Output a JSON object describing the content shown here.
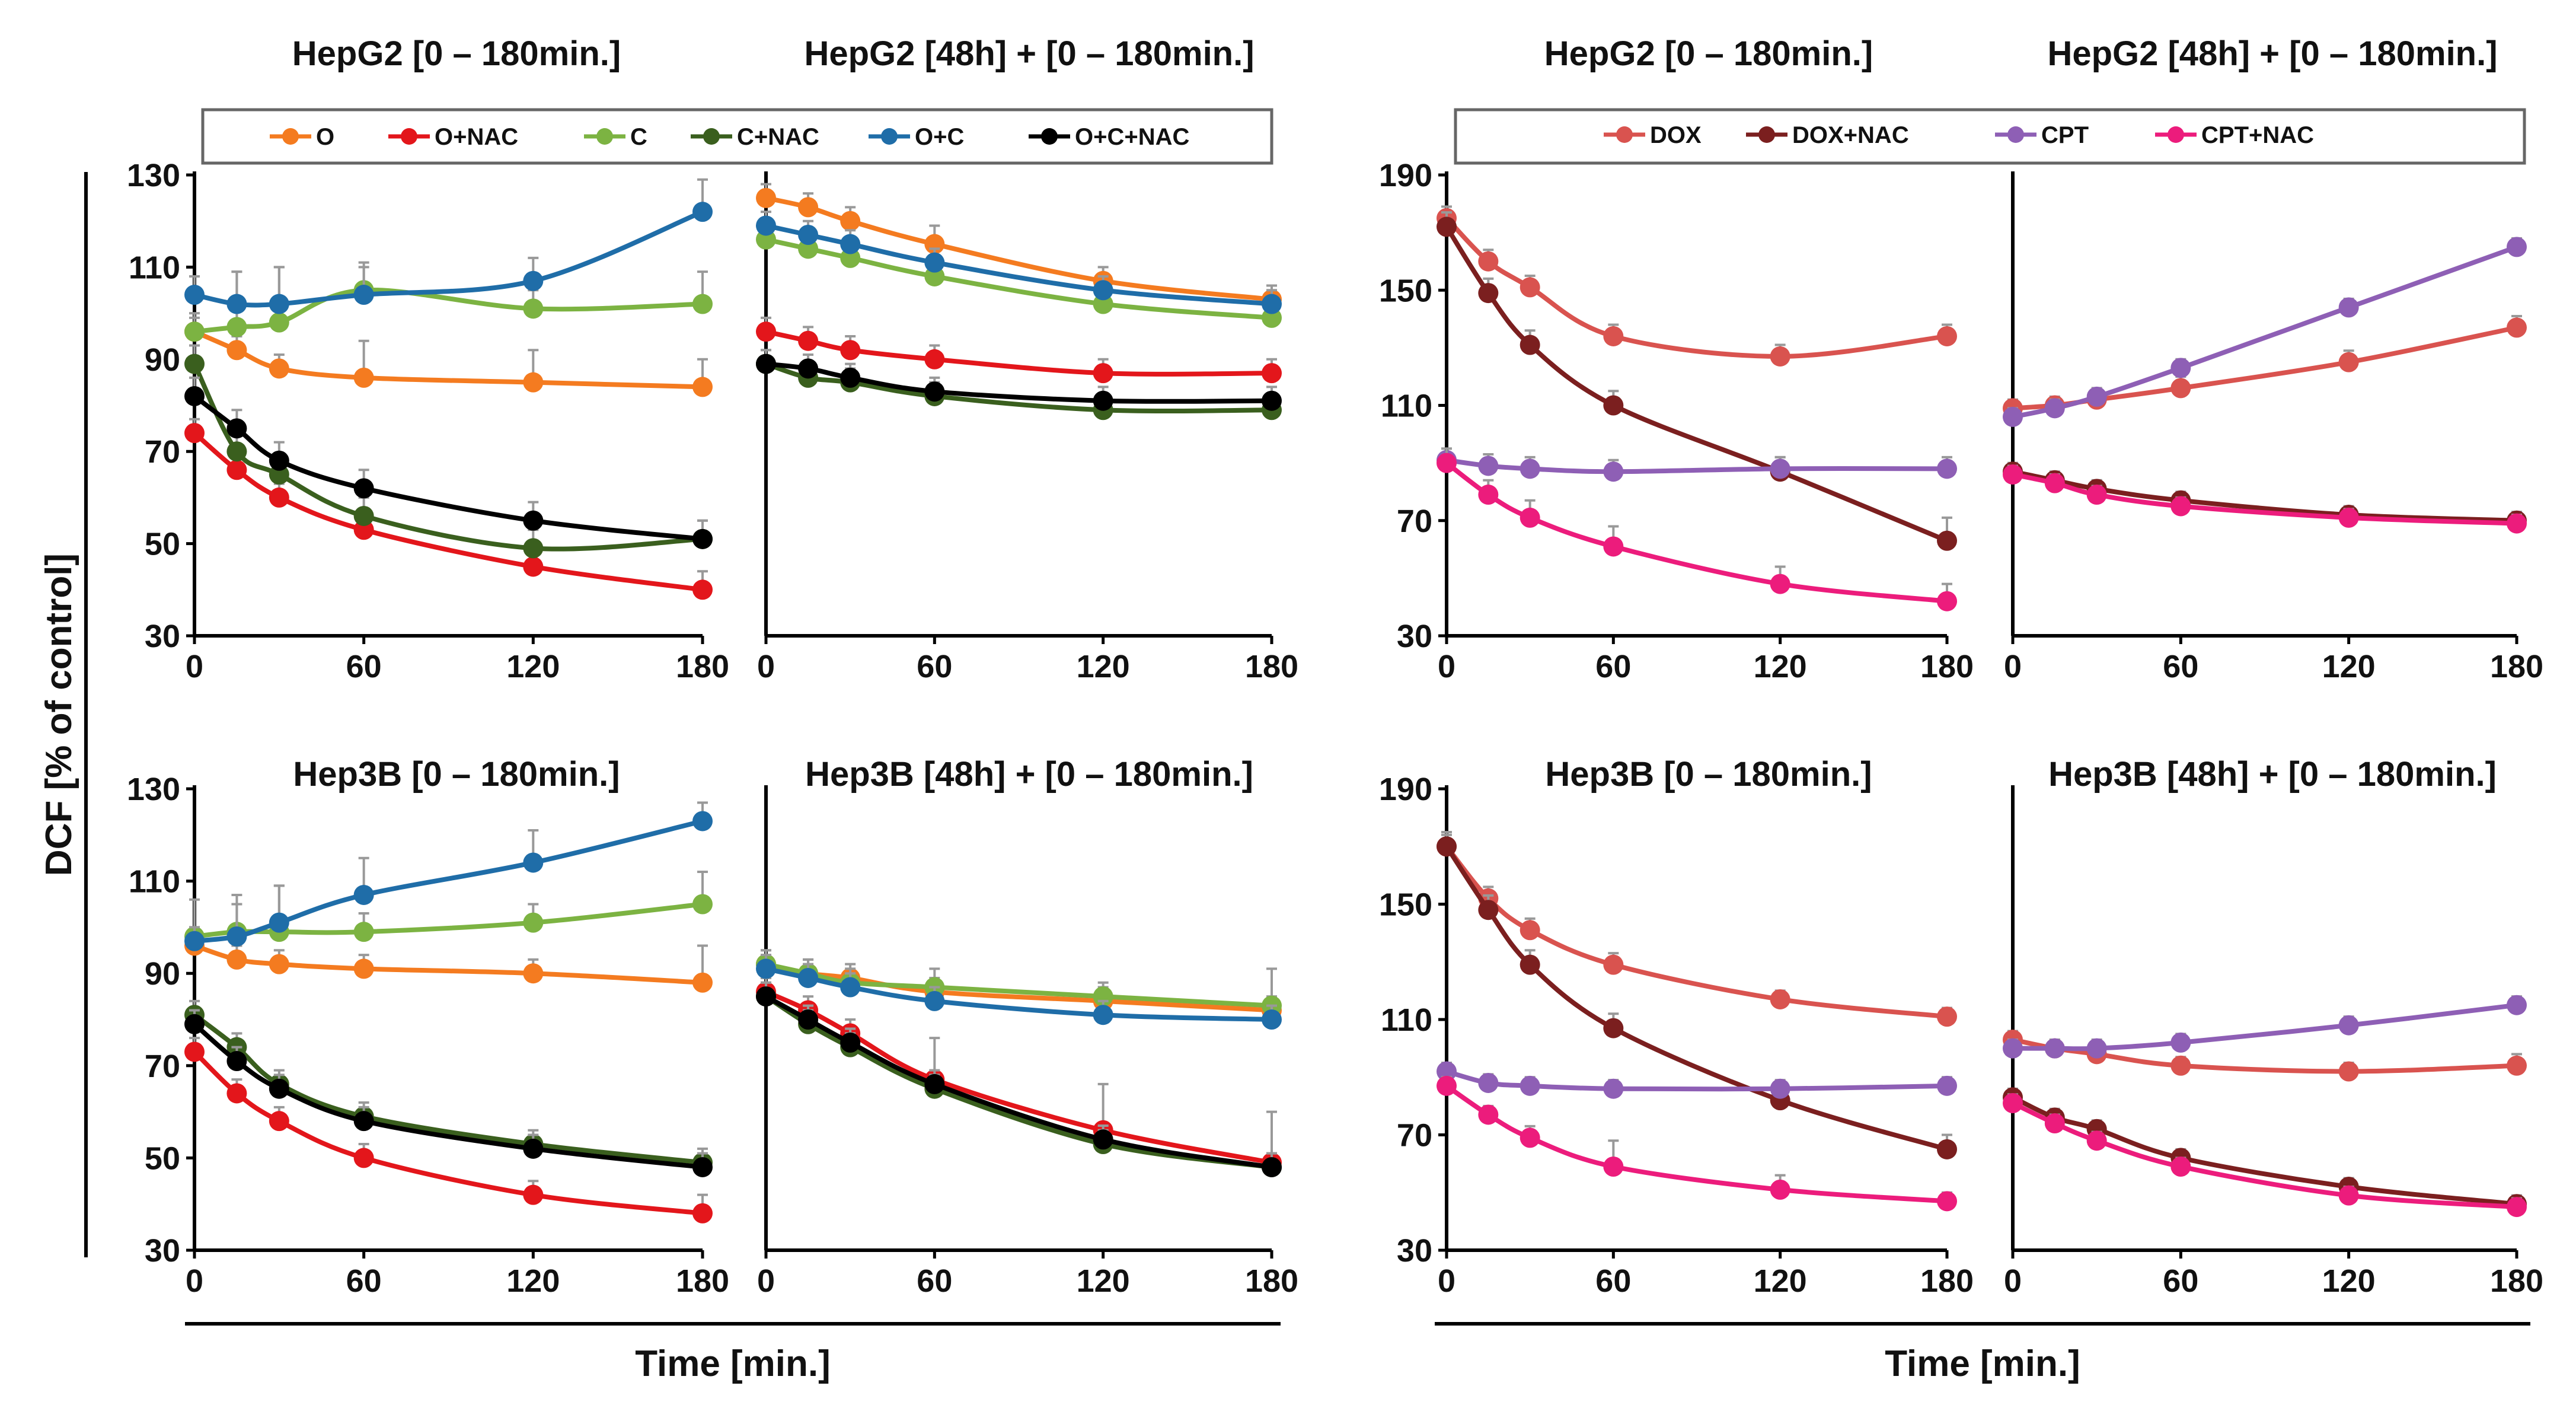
{
  "y_axis_title": "DCF [% of control]",
  "x_axis_title_left": "Time [min.]",
  "x_axis_title_right": "Time [min.]",
  "legend_left": [
    {
      "key": "O",
      "label": "O",
      "color": "#F47B20"
    },
    {
      "key": "ONAC",
      "label": "O+NAC",
      "color": "#E3161B"
    },
    {
      "key": "C",
      "label": "C",
      "color": "#7CB342"
    },
    {
      "key": "CNAC",
      "label": "C+NAC",
      "color": "#3A5F1E"
    },
    {
      "key": "OC",
      "label": "O+C",
      "color": "#1F6DA8"
    },
    {
      "key": "OCNAC",
      "label": "O+C+NAC",
      "color": "#000000"
    }
  ],
  "legend_right": [
    {
      "key": "DOX",
      "label": "DOX",
      "color": "#D9534F"
    },
    {
      "key": "DOXNAC",
      "label": "DOX+NAC",
      "color": "#7B1F1F"
    },
    {
      "key": "CPT",
      "label": "CPT",
      "color": "#8E5FB5"
    },
    {
      "key": "CPTNAC",
      "label": "CPT+NAC",
      "color": "#EC1C7C"
    }
  ],
  "chart_data": [
    {
      "type": "line",
      "title": "HepG2 [0 – 180min.]",
      "x": [
        0,
        15,
        30,
        60,
        120,
        180
      ],
      "xticks": [
        "0",
        "60",
        "120",
        "180"
      ],
      "xtick_values": [
        0,
        60,
        120,
        180
      ],
      "ylim": [
        30,
        130
      ],
      "yticks": [
        "30",
        "50",
        "70",
        "90",
        "110",
        "130"
      ],
      "ytick_values": [
        30,
        50,
        70,
        90,
        110,
        130
      ],
      "xlabel": "Time [min.]",
      "ylabel": "DCF [% of control]",
      "series": [
        {
          "name": "O",
          "values": [
            96,
            92,
            88,
            86,
            85,
            84
          ],
          "errors": [
            3,
            3,
            3,
            8,
            7,
            6
          ]
        },
        {
          "name": "O+NAC",
          "values": [
            74,
            66,
            60,
            53,
            45,
            40
          ],
          "errors": [
            3,
            3,
            3,
            3,
            3,
            4
          ]
        },
        {
          "name": "C",
          "values": [
            96,
            97,
            98,
            105,
            101,
            102
          ],
          "errors": [
            4,
            12,
            12,
            6,
            4,
            7
          ]
        },
        {
          "name": "C+NAC",
          "values": [
            89,
            70,
            65,
            56,
            49,
            51
          ],
          "errors": [
            4,
            4,
            4,
            4,
            4,
            4
          ]
        },
        {
          "name": "O+C",
          "values": [
            104,
            102,
            102,
            104,
            107,
            122
          ],
          "errors": [
            4,
            7,
            8,
            6,
            5,
            7
          ]
        },
        {
          "name": "O+C+NAC",
          "values": [
            82,
            75,
            68,
            62,
            55,
            51
          ],
          "errors": [
            4,
            4,
            4,
            4,
            4,
            4
          ]
        }
      ]
    },
    {
      "type": "line",
      "title": "HepG2 [48h] + [0 – 180min.]",
      "x": [
        0,
        15,
        30,
        60,
        120,
        180
      ],
      "xticks": [
        "0",
        "60",
        "120",
        "180"
      ],
      "xtick_values": [
        0,
        60,
        120,
        180
      ],
      "ylim": [
        30,
        130
      ],
      "yticks": [],
      "ytick_values": [],
      "xlabel": "Time [min.]",
      "series": [
        {
          "name": "O",
          "values": [
            125,
            123,
            120,
            115,
            107,
            103
          ],
          "errors": [
            3,
            3,
            3,
            4,
            3,
            3
          ]
        },
        {
          "name": "O+NAC",
          "values": [
            96,
            94,
            92,
            90,
            87,
            87
          ],
          "errors": [
            3,
            3,
            3,
            3,
            3,
            3
          ]
        },
        {
          "name": "C",
          "values": [
            116,
            114,
            112,
            108,
            102,
            99
          ],
          "errors": [
            3,
            3,
            3,
            3,
            3,
            3
          ]
        },
        {
          "name": "C+NAC",
          "values": [
            89,
            86,
            85,
            82,
            79,
            79
          ],
          "errors": [
            3,
            3,
            3,
            3,
            3,
            3
          ]
        },
        {
          "name": "O+C",
          "values": [
            119,
            117,
            115,
            111,
            105,
            102
          ],
          "errors": [
            3,
            3,
            3,
            3,
            3,
            3
          ]
        },
        {
          "name": "O+C+NAC",
          "values": [
            89,
            88,
            86,
            83,
            81,
            81
          ],
          "errors": [
            3,
            3,
            3,
            3,
            3,
            3
          ]
        }
      ]
    },
    {
      "type": "line",
      "title": "HepG2 [0 – 180min.]",
      "x": [
        0,
        15,
        30,
        60,
        120,
        180
      ],
      "xticks": [
        "0",
        "60",
        "120",
        "180"
      ],
      "xtick_values": [
        0,
        60,
        120,
        180
      ],
      "ylim": [
        30,
        190
      ],
      "yticks": [
        "30",
        "70",
        "110",
        "150",
        "190"
      ],
      "ytick_values": [
        30,
        70,
        110,
        150,
        190
      ],
      "xlabel": "Time [min.]",
      "series": [
        {
          "name": "DOX",
          "values": [
            175,
            160,
            151,
            134,
            127,
            134
          ],
          "errors": [
            4,
            4,
            4,
            4,
            4,
            4
          ]
        },
        {
          "name": "DOX+NAC",
          "values": [
            172,
            149,
            131,
            110,
            87,
            63
          ],
          "errors": [
            5,
            5,
            5,
            5,
            5,
            8
          ]
        },
        {
          "name": "CPT",
          "values": [
            91,
            89,
            88,
            87,
            88,
            88
          ],
          "errors": [
            4,
            4,
            4,
            4,
            4,
            4
          ]
        },
        {
          "name": "CPT+NAC",
          "values": [
            90,
            79,
            71,
            61,
            48,
            42
          ],
          "errors": [
            5,
            5,
            6,
            7,
            6,
            6
          ]
        }
      ]
    },
    {
      "type": "line",
      "title": "HepG2 [48h] + [0 – 180min.]",
      "x": [
        0,
        15,
        30,
        60,
        120,
        180
      ],
      "xticks": [
        "0",
        "60",
        "120",
        "180"
      ],
      "xtick_values": [
        0,
        60,
        120,
        180
      ],
      "ylim": [
        30,
        190
      ],
      "yticks": [],
      "ytick_values": [],
      "xlabel": "Time [min.]",
      "series": [
        {
          "name": "DOX",
          "values": [
            109,
            110,
            112,
            116,
            125,
            137
          ],
          "errors": [
            3,
            3,
            3,
            4,
            4,
            4
          ]
        },
        {
          "name": "DOX+NAC",
          "values": [
            87,
            84,
            81,
            77,
            72,
            70
          ],
          "errors": [
            3,
            3,
            3,
            3,
            3,
            3
          ]
        },
        {
          "name": "CPT",
          "values": [
            106,
            109,
            113,
            123,
            144,
            165
          ],
          "errors": [
            3,
            3,
            3,
            3,
            3,
            3
          ]
        },
        {
          "name": "CPT+NAC",
          "values": [
            86,
            83,
            79,
            75,
            71,
            69
          ],
          "errors": [
            3,
            3,
            3,
            3,
            3,
            3
          ]
        }
      ]
    },
    {
      "type": "line",
      "title": "Hep3B [0 – 180min.]",
      "x": [
        0,
        15,
        30,
        60,
        120,
        180
      ],
      "xticks": [
        "0",
        "60",
        "120",
        "180"
      ],
      "xtick_values": [
        0,
        60,
        120,
        180
      ],
      "ylim": [
        30,
        130
      ],
      "yticks": [
        "30",
        "50",
        "70",
        "90",
        "110",
        "130"
      ],
      "ytick_values": [
        30,
        50,
        70,
        90,
        110,
        130
      ],
      "xlabel": "Time [min.]",
      "series": [
        {
          "name": "O",
          "values": [
            96,
            93,
            92,
            91,
            90,
            88
          ],
          "errors": [
            3,
            3,
            3,
            3,
            3,
            8
          ]
        },
        {
          "name": "O+NAC",
          "values": [
            73,
            64,
            58,
            50,
            42,
            38
          ],
          "errors": [
            3,
            3,
            3,
            3,
            3,
            4
          ]
        },
        {
          "name": "C",
          "values": [
            98,
            99,
            99,
            99,
            101,
            105
          ],
          "errors": [
            8,
            8,
            10,
            4,
            4,
            7
          ]
        },
        {
          "name": "C+NAC",
          "values": [
            81,
            74,
            66,
            59,
            53,
            49
          ],
          "errors": [
            3,
            3,
            3,
            3,
            3,
            3
          ]
        },
        {
          "name": "O+C",
          "values": [
            97,
            98,
            101,
            107,
            114,
            123
          ],
          "errors": [
            3,
            7,
            8,
            8,
            7,
            4
          ]
        },
        {
          "name": "O+C+NAC",
          "values": [
            79,
            71,
            65,
            58,
            52,
            48
          ],
          "errors": [
            3,
            3,
            3,
            3,
            3,
            3
          ]
        }
      ]
    },
    {
      "type": "line",
      "title": "Hep3B [48h] + [0 – 180min.]",
      "x": [
        0,
        15,
        30,
        60,
        120,
        180
      ],
      "xticks": [
        "0",
        "60",
        "120",
        "180"
      ],
      "xtick_values": [
        0,
        60,
        120,
        180
      ],
      "ylim": [
        30,
        130
      ],
      "yticks": [],
      "ytick_values": [],
      "xlabel": "Time [min.]",
      "series": [
        {
          "name": "O",
          "values": [
            92,
            90,
            89,
            86,
            84,
            82
          ],
          "errors": [
            3,
            3,
            3,
            3,
            3,
            3
          ]
        },
        {
          "name": "O+NAC",
          "values": [
            86,
            82,
            77,
            67,
            56,
            49
          ],
          "errors": [
            3,
            3,
            3,
            9,
            10,
            11
          ]
        },
        {
          "name": "C",
          "values": [
            92,
            90,
            88,
            87,
            85,
            83
          ],
          "errors": [
            3,
            3,
            3,
            4,
            3,
            8
          ]
        },
        {
          "name": "C+NAC",
          "values": [
            85,
            79,
            74,
            65,
            53,
            48
          ],
          "errors": [
            3,
            3,
            3,
            3,
            3,
            3
          ]
        },
        {
          "name": "O+C",
          "values": [
            91,
            89,
            87,
            84,
            81,
            80
          ],
          "errors": [
            3,
            3,
            3,
            3,
            3,
            3
          ]
        },
        {
          "name": "O+C+NAC",
          "values": [
            85,
            80,
            75,
            66,
            54,
            48
          ],
          "errors": [
            3,
            3,
            3,
            3,
            3,
            3
          ]
        }
      ]
    },
    {
      "type": "line",
      "title": "Hep3B [0 – 180min.]",
      "x": [
        0,
        15,
        30,
        60,
        120,
        180
      ],
      "xticks": [
        "0",
        "60",
        "120",
        "180"
      ],
      "xtick_values": [
        0,
        60,
        120,
        180
      ],
      "ylim": [
        30,
        190
      ],
      "yticks": [
        "30",
        "70",
        "110",
        "150",
        "190"
      ],
      "ytick_values": [
        30,
        70,
        110,
        150,
        190
      ],
      "xlabel": "Time [min.]",
      "series": [
        {
          "name": "DOX",
          "values": [
            170,
            152,
            141,
            129,
            117,
            111
          ],
          "errors": [
            4,
            4,
            4,
            4,
            3,
            3
          ]
        },
        {
          "name": "DOX+NAC",
          "values": [
            170,
            148,
            129,
            107,
            82,
            65
          ],
          "errors": [
            5,
            5,
            5,
            5,
            5,
            5
          ]
        },
        {
          "name": "CPT",
          "values": [
            92,
            88,
            87,
            86,
            86,
            87
          ],
          "errors": [
            3,
            3,
            3,
            3,
            3,
            3
          ]
        },
        {
          "name": "CPT+NAC",
          "values": [
            87,
            77,
            69,
            59,
            51,
            47
          ],
          "errors": [
            3,
            3,
            4,
            9,
            5,
            3
          ]
        }
      ]
    },
    {
      "type": "line",
      "title": "Hep3B [48h] + [0 – 180min.]",
      "x": [
        0,
        15,
        30,
        60,
        120,
        180
      ],
      "xticks": [
        "0",
        "60",
        "120",
        "180"
      ],
      "xtick_values": [
        0,
        60,
        120,
        180
      ],
      "ylim": [
        30,
        190
      ],
      "yticks": [],
      "ytick_values": [],
      "xlabel": "Time [min.]",
      "series": [
        {
          "name": "DOX",
          "values": [
            103,
            100,
            98,
            94,
            92,
            94
          ],
          "errors": [
            3,
            3,
            3,
            3,
            3,
            4
          ]
        },
        {
          "name": "DOX+NAC",
          "values": [
            83,
            76,
            72,
            62,
            52,
            46
          ],
          "errors": [
            3,
            3,
            3,
            3,
            3,
            3
          ]
        },
        {
          "name": "CPT",
          "values": [
            100,
            100,
            100,
            102,
            108,
            115
          ],
          "errors": [
            3,
            3,
            3,
            3,
            3,
            3
          ]
        },
        {
          "name": "CPT+NAC",
          "values": [
            81,
            74,
            68,
            59,
            49,
            45
          ],
          "errors": [
            3,
            3,
            3,
            3,
            3,
            3
          ]
        }
      ]
    }
  ]
}
